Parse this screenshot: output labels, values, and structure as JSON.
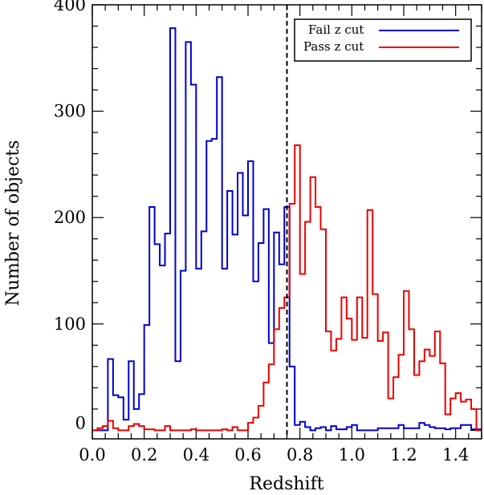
{
  "chart_data": {
    "type": "histogram",
    "xlabel": "Redshift",
    "ylabel": "Number  of objects",
    "xlim": [
      0.0,
      1.5
    ],
    "ylim": [
      -8,
      400
    ],
    "xticks": [
      "0.0",
      "0.2",
      "0.4",
      "0.6",
      "0.8",
      "1.0",
      "1.2",
      "1.4"
    ],
    "yticks": [
      "0",
      "100",
      "200",
      "300",
      "400"
    ],
    "bin_width": 0.02,
    "cut_line": {
      "x": 0.75,
      "style": "dashed",
      "color": "#000000"
    },
    "legend": {
      "position": "top-right"
    },
    "series": [
      {
        "name": "Fail z cut",
        "color": "#0000cc",
        "x": [
          0.0,
          0.02,
          0.04,
          0.06,
          0.08,
          0.1,
          0.12,
          0.14,
          0.16,
          0.18,
          0.2,
          0.22,
          0.24,
          0.26,
          0.28,
          0.3,
          0.32,
          0.34,
          0.36,
          0.38,
          0.4,
          0.42,
          0.44,
          0.46,
          0.48,
          0.5,
          0.52,
          0.54,
          0.56,
          0.58,
          0.6,
          0.62,
          0.64,
          0.66,
          0.68,
          0.7,
          0.72,
          0.74,
          0.76,
          0.78,
          0.8,
          0.82,
          0.84,
          0.86,
          0.88,
          0.9,
          0.92,
          0.94,
          0.96,
          0.98,
          1.0,
          1.02,
          1.04,
          1.06,
          1.08,
          1.1,
          1.12,
          1.14,
          1.16,
          1.18,
          1.2,
          1.22,
          1.24,
          1.26,
          1.28,
          1.3,
          1.32,
          1.34,
          1.36,
          1.38,
          1.4,
          1.42,
          1.44,
          1.46,
          1.48
        ],
        "values": [
          0,
          0,
          0,
          67,
          33,
          31,
          10,
          65,
          20,
          34,
          99,
          210,
          175,
          155,
          185,
          378,
          65,
          150,
          365,
          325,
          152,
          187,
          272,
          274,
          332,
          152,
          225,
          184,
          242,
          202,
          253,
          140,
          176,
          208,
          82,
          186,
          156,
          210,
          60,
          5,
          8,
          3,
          0,
          2,
          3,
          0,
          4,
          1,
          1,
          3,
          5,
          0,
          0,
          0,
          0,
          2,
          2,
          2,
          2,
          5,
          2,
          2,
          2,
          7,
          5,
          3,
          2,
          2,
          1,
          2,
          2,
          5,
          5,
          1,
          1
        ]
      },
      {
        "name": "Pass z cut",
        "color": "#ee0000",
        "x": [
          0.0,
          0.02,
          0.04,
          0.06,
          0.08,
          0.1,
          0.12,
          0.14,
          0.16,
          0.18,
          0.2,
          0.22,
          0.24,
          0.26,
          0.28,
          0.3,
          0.32,
          0.34,
          0.36,
          0.38,
          0.4,
          0.42,
          0.44,
          0.46,
          0.48,
          0.5,
          0.52,
          0.54,
          0.56,
          0.58,
          0.6,
          0.62,
          0.64,
          0.66,
          0.68,
          0.7,
          0.72,
          0.74,
          0.76,
          0.78,
          0.8,
          0.82,
          0.84,
          0.86,
          0.88,
          0.9,
          0.92,
          0.94,
          0.96,
          0.98,
          1.0,
          1.02,
          1.04,
          1.06,
          1.08,
          1.1,
          1.12,
          1.14,
          1.16,
          1.18,
          1.2,
          1.22,
          1.24,
          1.26,
          1.28,
          1.3,
          1.32,
          1.34,
          1.36,
          1.38,
          1.4,
          1.42,
          1.44,
          1.46,
          1.48
        ],
        "values": [
          0,
          2,
          4,
          9,
          2,
          0,
          0,
          4,
          6,
          4,
          1,
          1,
          0,
          0,
          4,
          0,
          0,
          0,
          0,
          1,
          0,
          0,
          0,
          0,
          0,
          1,
          0,
          3,
          0,
          0,
          7,
          12,
          23,
          45,
          62,
          95,
          115,
          125,
          213,
          268,
          147,
          196,
          238,
          210,
          189,
          93,
          75,
          86,
          125,
          105,
          85,
          125,
          87,
          207,
          128,
          84,
          92,
          30,
          50,
          71,
          131,
          95,
          52,
          65,
          76,
          70,
          93,
          63,
          15,
          30,
          35,
          27,
          29,
          20,
          0
        ]
      }
    ]
  }
}
